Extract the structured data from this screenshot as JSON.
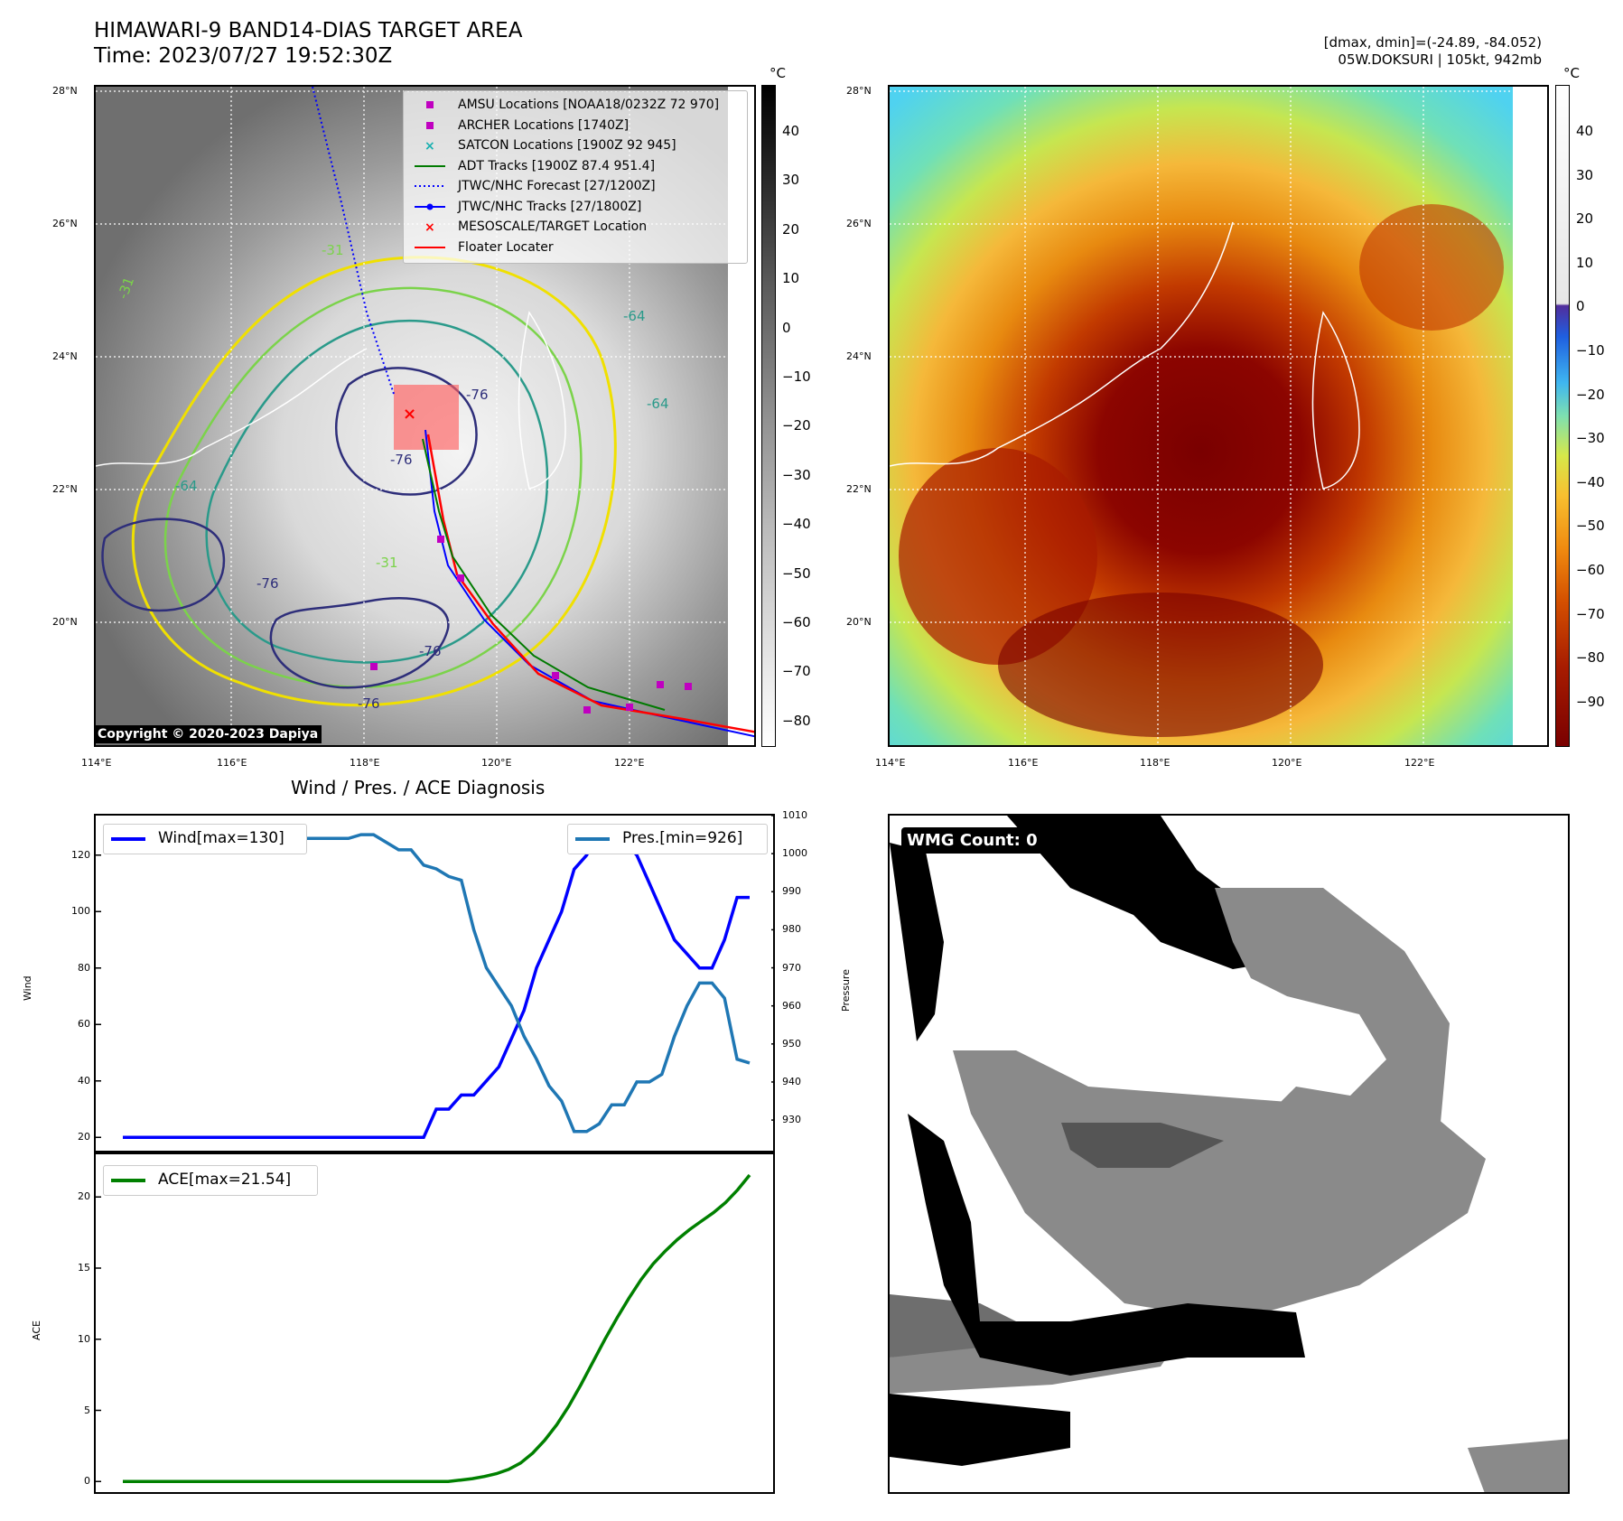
{
  "header": {
    "title_line1": "HIMAWARI-9 BAND14-DIAS TARGET AREA",
    "title_line2": "Time: 2023/07/27 19:52:30Z",
    "right_line1": "[dmax, dmin]=(-24.89, -84.052)",
    "right_line2": "05W.DOKSURI | 105kt, 942mb"
  },
  "map": {
    "lat_labels": [
      "28°N",
      "26°N",
      "24°N",
      "22°N",
      "20°N"
    ],
    "lon_labels": [
      "114°E",
      "116°E",
      "118°E",
      "120°E",
      "122°E"
    ],
    "copyright": "Copyright © 2020-2023 Dapiya",
    "contour_labels": [
      "-31",
      "-31",
      "-64",
      "-64",
      "-76",
      "-76",
      "-76",
      "-76",
      "-76",
      "-31",
      "-64"
    ],
    "legend": [
      {
        "label": "AMSU Locations [NOAA18/0232Z 72 970]",
        "color": "#c000c0",
        "symbol": "square"
      },
      {
        "label": "ARCHER Locations [1740Z]",
        "color": "#c000c0",
        "symbol": "square"
      },
      {
        "label": "SATCON Locations [1900Z 92 945]",
        "color": "#17b0b0",
        "symbol": "x"
      },
      {
        "label": "ADT Tracks [1900Z 87.4 951.4]",
        "color": "#007a00",
        "symbol": "line"
      },
      {
        "label": "JTWC/NHC Forecast [27/1200Z]",
        "color": "#0000ff",
        "symbol": "dotted"
      },
      {
        "label": "JTWC/NHC Tracks [27/1800Z]",
        "color": "#0000ff",
        "symbol": "line-dot"
      },
      {
        "label": "MESOSCALE/TARGET Location",
        "color": "#ff0000",
        "symbol": "x"
      },
      {
        "label": "Floater Locater",
        "color": "#ff0000",
        "symbol": "line"
      }
    ]
  },
  "colorbar_left": {
    "unit": "°C",
    "ticks": [
      "40",
      "30",
      "20",
      "10",
      "0",
      "−10",
      "−20",
      "−30",
      "−40",
      "−50",
      "−60",
      "−70",
      "−80"
    ]
  },
  "colorbar_right": {
    "unit": "°C",
    "ticks": [
      "40",
      "30",
      "20",
      "10",
      "0",
      "−10",
      "−20",
      "−30",
      "−40",
      "−50",
      "−60",
      "−70",
      "−80",
      "−90"
    ]
  },
  "diagnosis": {
    "title": "Wind / Pres. / ACE Diagnosis"
  },
  "wmg": {
    "label": "WMG Count: 0"
  },
  "chart_data": [
    {
      "type": "line",
      "title": "Wind / Pres. / ACE Diagnosis",
      "ylabel": "Wind",
      "y2label": "Pressure",
      "ylim": [
        14,
        134
      ],
      "y2lim": [
        921,
        1010
      ],
      "yticks": [
        20,
        40,
        60,
        80,
        100,
        120
      ],
      "y2ticks": [
        930,
        940,
        950,
        960,
        970,
        980,
        990,
        1000,
        1010
      ],
      "series": [
        {
          "name": "Wind[max=130]",
          "color": "#0000ff",
          "axis": "left",
          "values": [
            20,
            20,
            20,
            20,
            20,
            20,
            20,
            20,
            20,
            20,
            20,
            20,
            20,
            20,
            20,
            20,
            20,
            20,
            20,
            20,
            20,
            20,
            20,
            20,
            20,
            30,
            30,
            35,
            35,
            40,
            45,
            55,
            65,
            80,
            90,
            100,
            115,
            120,
            130,
            130,
            125,
            120,
            110,
            100,
            90,
            85,
            80,
            80,
            90,
            105,
            105
          ]
        },
        {
          "name": "Pres.[min=926]",
          "color": "#1f77b4",
          "axis": "right",
          "values": [
            1004,
            1004,
            1004,
            1004,
            1004,
            1004,
            1004,
            1005,
            1006,
            1004,
            1003,
            1003,
            1004,
            1004,
            1004,
            1004,
            1004,
            1004,
            1004,
            1005,
            1005,
            1003,
            1001,
            1001,
            997,
            996,
            994,
            993,
            980,
            970,
            965,
            960,
            952,
            946,
            939,
            935,
            927,
            927,
            929,
            934,
            934,
            940,
            940,
            942,
            952,
            960,
            966,
            966,
            962,
            946,
            945
          ]
        }
      ]
    },
    {
      "type": "line",
      "ylabel": "ACE",
      "ylim": [
        -1,
        23
      ],
      "yticks": [
        0,
        5,
        10,
        15,
        20
      ],
      "series": [
        {
          "name": "ACE[max=21.54]",
          "color": "#008000",
          "values": [
            0,
            0,
            0,
            0,
            0,
            0,
            0,
            0,
            0,
            0,
            0,
            0,
            0,
            0,
            0,
            0,
            0,
            0,
            0,
            0,
            0,
            0,
            0,
            0,
            0,
            0,
            0,
            0,
            0.1,
            0.2,
            0.35,
            0.55,
            0.85,
            1.3,
            2.0,
            2.9,
            4.0,
            5.3,
            6.8,
            8.4,
            10.0,
            11.5,
            12.9,
            14.2,
            15.3,
            16.2,
            17.0,
            17.7,
            18.3,
            18.9,
            19.6,
            20.5,
            21.54
          ]
        }
      ]
    }
  ]
}
